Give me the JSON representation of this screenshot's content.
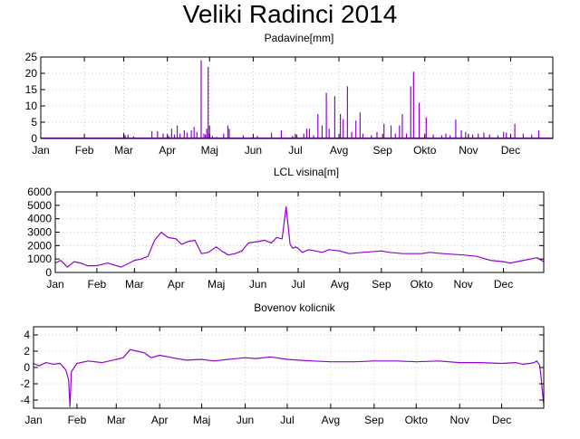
{
  "title": "Veliki Radinci 2014",
  "colors": {
    "series": "#9400d3",
    "frame": "#000000",
    "grid": "#bbbbbb"
  },
  "chart_data": [
    {
      "type": "bar",
      "title": "Padavine[mm]",
      "xlabel": "",
      "ylabel": "",
      "ylim": [
        0,
        25
      ],
      "yticks": [
        0,
        5,
        10,
        15,
        20,
        25
      ],
      "xlim": [
        1,
        365
      ],
      "xticks": [
        {
          "label": "Jan",
          "day": 1
        },
        {
          "label": "Feb",
          "day": 32
        },
        {
          "label": "Mar",
          "day": 60
        },
        {
          "label": "Apr",
          "day": 91
        },
        {
          "label": "Maj",
          "day": 121
        },
        {
          "label": "Jun",
          "day": 152
        },
        {
          "label": "Jul",
          "day": 182
        },
        {
          "label": "Avg",
          "day": 213
        },
        {
          "label": "Sep",
          "day": 244
        },
        {
          "label": "Okto",
          "day": 274
        },
        {
          "label": "Nov",
          "day": 305
        },
        {
          "label": "Dec",
          "day": 335
        }
      ],
      "grid": true,
      "series": [
        {
          "x": [
            60,
            61,
            63,
            67,
            80,
            84,
            88,
            92,
            94,
            96,
            98,
            100,
            103,
            105,
            108,
            110,
            112,
            115,
            117,
            118,
            119,
            120,
            121,
            123,
            126,
            131,
            134,
            135,
            145,
            155,
            165,
            172,
            180,
            183,
            188,
            190,
            192,
            195,
            198,
            201,
            204,
            206,
            210,
            214,
            216,
            219,
            222,
            225,
            228,
            230,
            236,
            240,
            245,
            250,
            253,
            256,
            258,
            261,
            264,
            266,
            270,
            275,
            280,
            286,
            289,
            292,
            296,
            300,
            303,
            308,
            312,
            316,
            320,
            326,
            330,
            332,
            338,
            344,
            350,
            355
          ],
          "values": [
            1.8,
            1,
            1.2,
            0.6,
            2.2,
            2.2,
            1.5,
            0.8,
            3,
            1.2,
            4,
            1.5,
            2.5,
            1.8,
            2.5,
            3.5,
            2,
            24,
            1.5,
            1.2,
            3,
            22,
            4,
            0.8,
            0.5,
            1.5,
            4,
            3,
            1,
            0.8,
            1.8,
            2.5,
            0.8,
            1.2,
            1.5,
            3,
            3,
            1,
            7.5,
            4,
            14,
            3,
            13,
            7.5,
            6,
            16,
            2,
            5.5,
            8,
            1.5,
            1,
            2,
            4.5,
            4,
            1.5,
            4,
            7.5,
            1.5,
            16,
            20.5,
            11,
            6.5,
            1.2,
            1,
            1.5,
            1,
            5.8,
            2.5,
            2,
            1.2,
            1.5,
            1.8,
            1.2,
            1,
            2,
            1.8,
            4.5,
            1.5,
            1.2,
            2.5
          ]
        }
      ]
    },
    {
      "type": "line",
      "title": "LCL visina[m]",
      "xlabel": "",
      "ylabel": "",
      "ylim": [
        0,
        6000
      ],
      "yticks": [
        0,
        1000,
        2000,
        3000,
        4000,
        5000,
        6000
      ],
      "xlim": [
        1,
        365
      ],
      "xticks": [
        {
          "label": "Jan",
          "day": 1
        },
        {
          "label": "Feb",
          "day": 32
        },
        {
          "label": "Mar",
          "day": 60
        },
        {
          "label": "Apr",
          "day": 91
        },
        {
          "label": "Maj",
          "day": 121
        },
        {
          "label": "Jun",
          "day": 152
        },
        {
          "label": "Jul",
          "day": 182
        },
        {
          "label": "Avg",
          "day": 213
        },
        {
          "label": "Sep",
          "day": 244
        },
        {
          "label": "Okto",
          "day": 274
        },
        {
          "label": "Nov",
          "day": 305
        },
        {
          "label": "Dec",
          "day": 335
        }
      ],
      "grid": true,
      "series": [
        {
          "x": [
            1,
            5,
            10,
            15,
            20,
            25,
            32,
            40,
            50,
            60,
            65,
            70,
            75,
            80,
            85,
            91,
            95,
            100,
            105,
            110,
            115,
            121,
            125,
            130,
            135,
            140,
            145,
            152,
            157,
            162,
            166,
            170,
            173,
            176,
            178,
            180,
            182,
            185,
            190,
            195,
            200,
            205,
            213,
            220,
            230,
            244,
            250,
            260,
            274,
            280,
            290,
            305,
            315,
            325,
            335,
            340,
            345,
            350,
            355,
            360,
            365
          ],
          "values": [
            700,
            900,
            400,
            800,
            700,
            500,
            500,
            700,
            400,
            900,
            1000,
            1200,
            2400,
            3000,
            2600,
            2500,
            2100,
            2300,
            2400,
            1400,
            1500,
            1900,
            1600,
            1300,
            1400,
            1600,
            2200,
            2300,
            2400,
            2200,
            2600,
            2500,
            4900,
            2100,
            1800,
            1900,
            1800,
            1500,
            1700,
            1600,
            1500,
            1700,
            1600,
            1400,
            1500,
            1600,
            1500,
            1400,
            1400,
            1500,
            1400,
            1300,
            1200,
            900,
            800,
            700,
            800,
            900,
            1000,
            1100,
            800
          ]
        }
      ]
    },
    {
      "type": "line",
      "title": "Bovenov kolicnik",
      "xlabel": "",
      "ylabel": "",
      "ylim": [
        -5,
        5
      ],
      "yticks": [
        -4,
        -2,
        0,
        2,
        4
      ],
      "xlim": [
        1,
        365
      ],
      "xticks": [
        {
          "label": "Jan",
          "day": 1
        },
        {
          "label": "Feb",
          "day": 32
        },
        {
          "label": "Mar",
          "day": 60
        },
        {
          "label": "Apr",
          "day": 91
        },
        {
          "label": "Maj",
          "day": 121
        },
        {
          "label": "Jun",
          "day": 152
        },
        {
          "label": "Jul",
          "day": 182
        },
        {
          "label": "Avg",
          "day": 213
        },
        {
          "label": "Sep",
          "day": 244
        },
        {
          "label": "Okto",
          "day": 274
        },
        {
          "label": "Nov",
          "day": 305
        },
        {
          "label": "Dec",
          "day": 335
        }
      ],
      "grid": true,
      "series": [
        {
          "x": [
            1,
            5,
            10,
            15,
            20,
            24,
            26,
            27,
            28,
            32,
            40,
            50,
            60,
            65,
            70,
            75,
            80,
            85,
            91,
            100,
            110,
            121,
            130,
            140,
            152,
            160,
            170,
            182,
            190,
            200,
            213,
            230,
            244,
            260,
            274,
            290,
            305,
            320,
            335,
            345,
            350,
            355,
            358,
            360,
            362,
            363,
            364,
            365
          ],
          "values": [
            0.5,
            0.2,
            0.6,
            0.4,
            0.5,
            -0.3,
            -1.5,
            -4.8,
            -0.5,
            0.5,
            0.8,
            0.6,
            1,
            1.2,
            2.2,
            2,
            1.8,
            1.2,
            1.5,
            1.2,
            0.9,
            1,
            0.8,
            1,
            1.2,
            1.1,
            1.3,
            1,
            0.9,
            0.8,
            0.7,
            0.7,
            0.8,
            0.8,
            0.7,
            0.8,
            0.6,
            0.6,
            0.5,
            0.6,
            0.4,
            0.5,
            0.6,
            0.8,
            0.3,
            -1,
            -3,
            -4.5
          ]
        }
      ]
    }
  ]
}
